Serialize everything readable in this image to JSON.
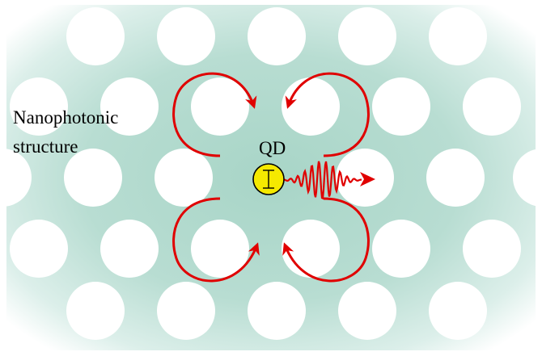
{
  "labels": {
    "structure_line1": "Nanophotonic",
    "structure_line2": "structure",
    "qd": "QD"
  },
  "colors": {
    "background_teal": "#b7dcd1",
    "holes": "#ffffff",
    "arrows": "#e00000",
    "emitter_fill": "#f5e900",
    "emitter_stroke": "#000000",
    "emission": "#e00000"
  },
  "icons": {
    "emitter": "quantum-dot-dipole-icon",
    "emission": "wave-packet-arrow-icon"
  }
}
